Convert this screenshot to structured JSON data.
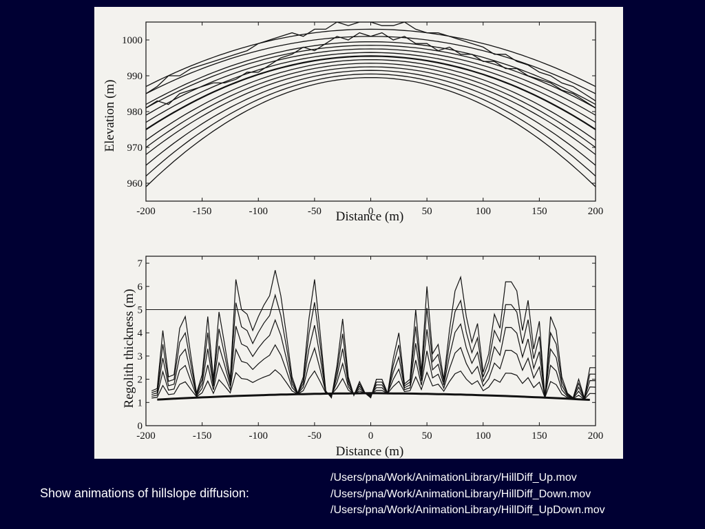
{
  "caption": "Show animations of hillslope diffusion:",
  "files": [
    "/Users/pna/Work/AnimationLibrary/HillDiff_Up.mov",
    "/Users/pna/Work/AnimationLibrary/HillDiff_Down.mov",
    "/Users/pna/Work/AnimationLibrary/HillDiff_UpDown.mov"
  ],
  "colors": {
    "background": "#000033",
    "figure_paper": "#f3f2ee",
    "ink": "#111111",
    "caption_text": "#ffffff"
  },
  "chart_data": [
    {
      "type": "line",
      "xlabel": "Distance (m)",
      "ylabel": "Elevation (m)",
      "xlim": [
        -200,
        200
      ],
      "ylim": [
        955,
        1005
      ],
      "xticks": [
        -200,
        -150,
        -100,
        -50,
        0,
        50,
        100,
        150,
        200
      ],
      "yticks": [
        960,
        970,
        980,
        990,
        1000
      ],
      "grid": false,
      "series": [
        {
          "peaks": [
            1003,
            1001,
            999.5,
            998.5,
            997.5,
            996.5,
            995.5,
            994.5,
            993.5,
            992.5,
            991.5,
            990.5,
            989.5
          ],
          "edges": [
            987,
            985,
            982,
            981,
            979,
            977,
            975,
            972,
            970,
            968,
            965,
            962,
            959
          ]
        },
        {
          "rough_profiles": [
            {
              "x": [
                -200,
                -190,
                -180,
                -170,
                -160,
                -150,
                -140,
                -130,
                -120,
                -110,
                -100,
                -90,
                -80,
                -70,
                -60,
                -50,
                -40,
                -30,
                -20,
                -10,
                0,
                10,
                20,
                30,
                40,
                50,
                60,
                70,
                80,
                90,
                100,
                110,
                120,
                130,
                140,
                150,
                160,
                170,
                180,
                190,
                200
              ],
              "y": [
                985,
                987,
                990,
                990,
                992,
                993,
                994,
                995,
                996,
                997,
                999,
                1000,
                1001,
                1002,
                1001,
                1003,
                1003,
                1005,
                1004,
                1005,
                1005,
                1004,
                1004,
                1005,
                1003,
                1002,
                1002,
                1001,
                1000,
                999,
                998,
                996,
                996,
                994,
                993,
                991,
                990,
                988,
                987,
                985,
                983
              ]
            },
            {
              "x": [
                -200,
                -190,
                -180,
                -170,
                -160,
                -150,
                -140,
                -130,
                -120,
                -110,
                -100,
                -90,
                -80,
                -70,
                -60,
                -50,
                -40,
                -30,
                -20,
                -10,
                0,
                10,
                20,
                30,
                40,
                50,
                60,
                70,
                80,
                90,
                100,
                110,
                120,
                130,
                140,
                150,
                160,
                170,
                180,
                190,
                200
              ],
              "y": [
                981,
                983,
                982,
                985,
                986,
                987,
                988,
                988,
                989,
                991,
                991,
                993,
                995,
                996,
                998,
                997,
                999,
                1001,
                1000,
                1002,
                1001,
                1002,
                1000,
                1001,
                999,
                999,
                997,
                998,
                996,
                996,
                994,
                994,
                992,
                992,
                990,
                989,
                988,
                986,
                985,
                983,
                981
              ]
            }
          ]
        }
      ]
    },
    {
      "type": "line",
      "xlabel": "Distance (m)",
      "ylabel": "Regolith thickness (m)",
      "xlim": [
        -200,
        200
      ],
      "ylim": [
        0,
        7.3
      ],
      "xticks": [
        -200,
        -150,
        -100,
        -50,
        0,
        50,
        100,
        150,
        200
      ],
      "yticks": [
        0,
        1,
        2,
        3,
        4,
        5,
        6,
        7
      ],
      "grid": false,
      "reference_line": 5.0,
      "baseline": {
        "x": [
          -200,
          -160,
          -120,
          -80,
          -40,
          0,
          40,
          80,
          120,
          160,
          200
        ],
        "y": [
          1.1,
          1.2,
          1.28,
          1.34,
          1.38,
          1.4,
          1.38,
          1.34,
          1.28,
          1.2,
          1.1
        ]
      },
      "peak_profile": {
        "x": [
          -195,
          -190,
          -185,
          -180,
          -175,
          -170,
          -165,
          -160,
          -155,
          -150,
          -145,
          -140,
          -135,
          -130,
          -125,
          -120,
          -115,
          -110,
          -105,
          -100,
          -95,
          -90,
          -85,
          -80,
          -75,
          -70,
          -65,
          -60,
          -55,
          -50,
          -45,
          -40,
          -35,
          -30,
          -25,
          -20,
          -15,
          -10,
          -5,
          0,
          5,
          10,
          15,
          20,
          25,
          30,
          35,
          40,
          45,
          50,
          55,
          60,
          65,
          70,
          75,
          80,
          85,
          90,
          95,
          100,
          105,
          110,
          115,
          120,
          125,
          130,
          135,
          140,
          145,
          150,
          155,
          160,
          165,
          170,
          175,
          180,
          185,
          190,
          195,
          200
        ],
        "y": [
          1.5,
          1.6,
          4.1,
          2.1,
          2.2,
          4.2,
          4.7,
          3.0,
          1.4,
          2.2,
          4.7,
          2.0,
          4.9,
          3.5,
          2.0,
          6.3,
          5.0,
          4.8,
          4.1,
          4.7,
          5.2,
          5.6,
          6.7,
          5.6,
          3.9,
          2.1,
          1.4,
          2.1,
          4.6,
          6.3,
          4.0,
          1.5,
          1.2,
          2.6,
          4.6,
          2.1,
          1.3,
          1.9,
          1.4,
          1.2,
          2.0,
          2.0,
          1.4,
          2.9,
          4.0,
          1.8,
          2.0,
          5.0,
          2.3,
          6.0,
          3.1,
          3.5,
          2.0,
          4.1,
          5.8,
          6.4,
          4.7,
          3.6,
          4.4,
          2.3,
          3.1,
          4.8,
          4.2,
          6.2,
          6.2,
          5.8,
          4.1,
          5.4,
          3.3,
          4.5,
          1.2,
          4.7,
          4.1,
          2.1,
          1.4,
          1.2,
          2.0,
          1.2,
          2.5,
          2.5
        ]
      },
      "fractions": [
        1.0,
        0.8,
        0.6,
        0.4,
        0.2
      ]
    }
  ]
}
